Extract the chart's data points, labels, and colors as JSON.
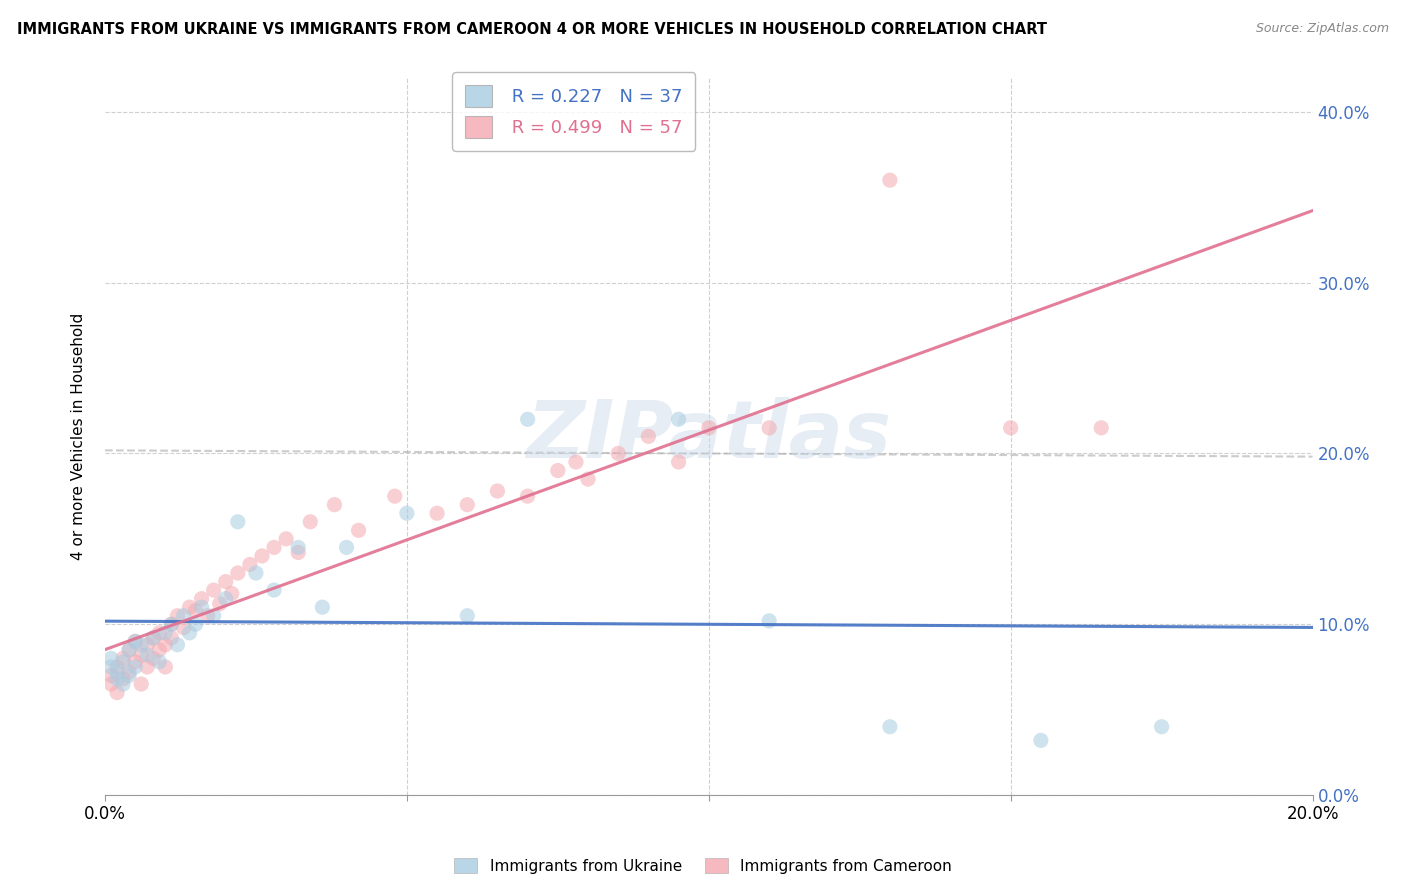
{
  "title": "IMMIGRANTS FROM UKRAINE VS IMMIGRANTS FROM CAMEROON 4 OR MORE VEHICLES IN HOUSEHOLD CORRELATION CHART",
  "source": "Source: ZipAtlas.com",
  "ylabel": "4 or more Vehicles in Household",
  "ukraine_color": "#a8cce0",
  "cameroon_color": "#f4a8b0",
  "ukraine_line_color": "#4472c4",
  "cameroon_line_color": "#e07090",
  "legend_ukraine_R": "R = 0.227",
  "legend_ukraine_N": "N = 37",
  "legend_cameroon_R": "R = 0.499",
  "legend_cameroon_N": "N = 57",
  "ukraine_scatter_x": [
    0.001,
    0.001,
    0.002,
    0.002,
    0.003,
    0.003,
    0.004,
    0.004,
    0.005,
    0.005,
    0.006,
    0.007,
    0.008,
    0.009,
    0.01,
    0.011,
    0.012,
    0.013,
    0.014,
    0.015,
    0.016,
    0.018,
    0.02,
    0.022,
    0.025,
    0.028,
    0.032,
    0.036,
    0.04,
    0.05,
    0.06,
    0.07,
    0.095,
    0.11,
    0.13,
    0.155,
    0.175
  ],
  "ukraine_scatter_y": [
    0.075,
    0.08,
    0.068,
    0.072,
    0.065,
    0.078,
    0.07,
    0.085,
    0.075,
    0.09,
    0.088,
    0.082,
    0.092,
    0.078,
    0.095,
    0.1,
    0.088,
    0.105,
    0.095,
    0.1,
    0.11,
    0.105,
    0.115,
    0.16,
    0.13,
    0.12,
    0.145,
    0.11,
    0.145,
    0.165,
    0.105,
    0.22,
    0.22,
    0.102,
    0.04,
    0.032,
    0.04
  ],
  "cameroon_scatter_x": [
    0.001,
    0.001,
    0.002,
    0.002,
    0.003,
    0.003,
    0.004,
    0.004,
    0.005,
    0.005,
    0.006,
    0.006,
    0.007,
    0.007,
    0.008,
    0.008,
    0.009,
    0.009,
    0.01,
    0.01,
    0.011,
    0.011,
    0.012,
    0.013,
    0.014,
    0.015,
    0.016,
    0.017,
    0.018,
    0.019,
    0.02,
    0.021,
    0.022,
    0.024,
    0.026,
    0.028,
    0.03,
    0.032,
    0.034,
    0.038,
    0.042,
    0.048,
    0.055,
    0.06,
    0.065,
    0.07,
    0.075,
    0.078,
    0.08,
    0.085,
    0.09,
    0.095,
    0.1,
    0.11,
    0.13,
    0.15,
    0.165
  ],
  "cameroon_scatter_y": [
    0.065,
    0.07,
    0.06,
    0.075,
    0.068,
    0.08,
    0.072,
    0.085,
    0.078,
    0.09,
    0.065,
    0.082,
    0.088,
    0.075,
    0.092,
    0.08,
    0.085,
    0.095,
    0.075,
    0.088,
    0.1,
    0.092,
    0.105,
    0.098,
    0.11,
    0.108,
    0.115,
    0.105,
    0.12,
    0.112,
    0.125,
    0.118,
    0.13,
    0.135,
    0.14,
    0.145,
    0.15,
    0.142,
    0.16,
    0.17,
    0.155,
    0.175,
    0.165,
    0.17,
    0.178,
    0.175,
    0.19,
    0.195,
    0.185,
    0.2,
    0.21,
    0.195,
    0.215,
    0.215,
    0.36,
    0.215,
    0.215
  ],
  "xlim": [
    0.0,
    0.2
  ],
  "ylim": [
    0.0,
    0.42
  ],
  "y_ticks": [
    0.0,
    0.1,
    0.2,
    0.3,
    0.4
  ],
  "x_tick_labels_show": [
    "0.0%",
    "20.0%"
  ],
  "background_color": "#ffffff",
  "grid_color": "#d0d0d0",
  "watermark": "ZIPatlas"
}
